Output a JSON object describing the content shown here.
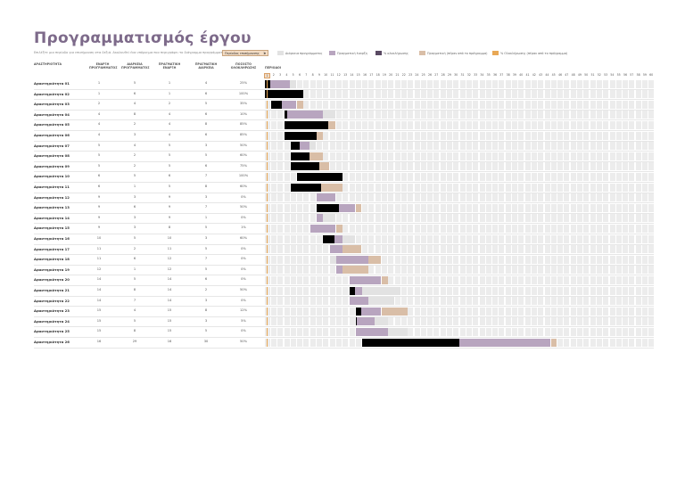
{
  "title": "Προγραμματισμός έργου",
  "subtitle": "Επιλέξτε μια περίοδο για επισήμανση στα δεξιά.  Ακολουθεί ένα υπόμνημα που περιγράφει το διάγραμμα προγράμματος:",
  "period_selector": {
    "label": "Περίοδος επισήμανσης",
    "value": "1"
  },
  "legend": [
    {
      "label": "Διάρκεια προγράμματος",
      "color": "#e2e2e2"
    },
    {
      "label": "Πραγματική έναρξη",
      "color": "#b8a5bf"
    },
    {
      "label": "% ολοκλήρωσης",
      "color": "#5a4a63"
    },
    {
      "label": "Πραγματική (πέραν από το πρόγραμμα)",
      "color": "#d9bea7"
    },
    {
      "label": "% Ολοκλήρωσης (πέραν από το πρόγραμμα)",
      "color": "#e8a856"
    }
  ],
  "headers": {
    "activity": "ΔΡΑΣΤΗΡΙΟΤΗΤΑ",
    "plan_start": "ΕΝΑΡΞΗ ΠΡΟΓΡΑΜΜΑΤΟΣ",
    "plan_duration": "ΔΙΑΡΚΕΙΑ ΠΡΟΓΡΑΜΜΑΤΟΣ",
    "actual_start": "ΠΡΑΓΜΑΤΙΚΗ ΕΝΑΡΞΗ",
    "actual_duration": "ΠΡΑΓΜΑΤΙΚΗ ΔΙΑΡΚΕΙΑ",
    "percent": "ΠΟΣΟΣΤΟ ΟΛΟΚΛΗΡΩΣΗΣ",
    "periods": "ΠΕΡΙΟΔΟΙ"
  },
  "colors": {
    "complete": "#000000",
    "actual": "#b8a5bf",
    "plan": "#e2e2e2",
    "beyond": "#d9bea7",
    "beyond_complete": "#e8a856"
  },
  "period_count": 60,
  "rows": [
    {
      "name": "Δραστηριότητα 01",
      "ps": "1",
      "pd": "5",
      "as": "1",
      "ad": "4",
      "pct": "25%"
    },
    {
      "name": "Δραστηριότητα 02",
      "ps": "1",
      "pd": "6",
      "as": "1",
      "ad": "6",
      "pct": "100%"
    },
    {
      "name": "Δραστηριότητα 03",
      "ps": "2",
      "pd": "4",
      "as": "2",
      "ad": "5",
      "pct": "35%"
    },
    {
      "name": "Δραστηριότητα 04",
      "ps": "4",
      "pd": "8",
      "as": "4",
      "ad": "6",
      "pct": "10%"
    },
    {
      "name": "Δραστηριότητα 05",
      "ps": "4",
      "pd": "2",
      "as": "4",
      "ad": "8",
      "pct": "85%"
    },
    {
      "name": "Δραστηριότητα 06",
      "ps": "4",
      "pd": "3",
      "as": "4",
      "ad": "6",
      "pct": "85%"
    },
    {
      "name": "Δραστηριότητα 07",
      "ps": "5",
      "pd": "4",
      "as": "5",
      "ad": "3",
      "pct": "50%"
    },
    {
      "name": "Δραστηριότητα 08",
      "ps": "5",
      "pd": "2",
      "as": "5",
      "ad": "5",
      "pct": "60%"
    },
    {
      "name": "Δραστηριότητα 09",
      "ps": "5",
      "pd": "2",
      "as": "5",
      "ad": "6",
      "pct": "75%"
    },
    {
      "name": "Δραστηριότητα 10",
      "ps": "6",
      "pd": "5",
      "as": "6",
      "ad": "7",
      "pct": "100%"
    },
    {
      "name": "Δραστηριότητα 11",
      "ps": "6",
      "pd": "1",
      "as": "5",
      "ad": "8",
      "pct": "60%"
    },
    {
      "name": "Δραστηριότητα 12",
      "ps": "9",
      "pd": "3",
      "as": "9",
      "ad": "3",
      "pct": "0%"
    },
    {
      "name": "Δραστηριότητα 13",
      "ps": "9",
      "pd": "6",
      "as": "9",
      "ad": "7",
      "pct": "50%"
    },
    {
      "name": "Δραστηριότητα 14",
      "ps": "9",
      "pd": "3",
      "as": "9",
      "ad": "1",
      "pct": "0%"
    },
    {
      "name": "Δραστηριότητα 15",
      "ps": "9",
      "pd": "3",
      "as": "8",
      "ad": "5",
      "pct": "1%"
    },
    {
      "name": "Δραστηριότητα 16",
      "ps": "10",
      "pd": "5",
      "as": "10",
      "ad": "3",
      "pct": "60%"
    },
    {
      "name": "Δραστηριότητα 17",
      "ps": "11",
      "pd": "2",
      "as": "11",
      "ad": "5",
      "pct": "0%"
    },
    {
      "name": "Δραστηριότητα 18",
      "ps": "11",
      "pd": "6",
      "as": "12",
      "ad": "7",
      "pct": "0%"
    },
    {
      "name": "Δραστηριότητα 19",
      "ps": "12",
      "pd": "1",
      "as": "12",
      "ad": "5",
      "pct": "0%"
    },
    {
      "name": "Δραστηριότητα 20",
      "ps": "14",
      "pd": "5",
      "as": "14",
      "ad": "6",
      "pct": "0%"
    },
    {
      "name": "Δραστηριότητα 21",
      "ps": "14",
      "pd": "8",
      "as": "14",
      "ad": "2",
      "pct": "50%"
    },
    {
      "name": "Δραστηριότητα 22",
      "ps": "14",
      "pd": "7",
      "as": "14",
      "ad": "3",
      "pct": "0%"
    },
    {
      "name": "Δραστηριότητα 23",
      "ps": "15",
      "pd": "4",
      "as": "15",
      "ad": "8",
      "pct": "12%"
    },
    {
      "name": "Δραστηριότητα 24",
      "ps": "15",
      "pd": "5",
      "as": "15",
      "ad": "3",
      "pct": "5%"
    },
    {
      "name": "Δραστηριότητα 25",
      "ps": "15",
      "pd": "8",
      "as": "15",
      "ad": "5",
      "pct": "0%"
    },
    {
      "name": "Δραστηριότητα 26",
      "ps": "16",
      "pd": "29",
      "as": "16",
      "ad": "30",
      "pct": "50%"
    }
  ]
}
